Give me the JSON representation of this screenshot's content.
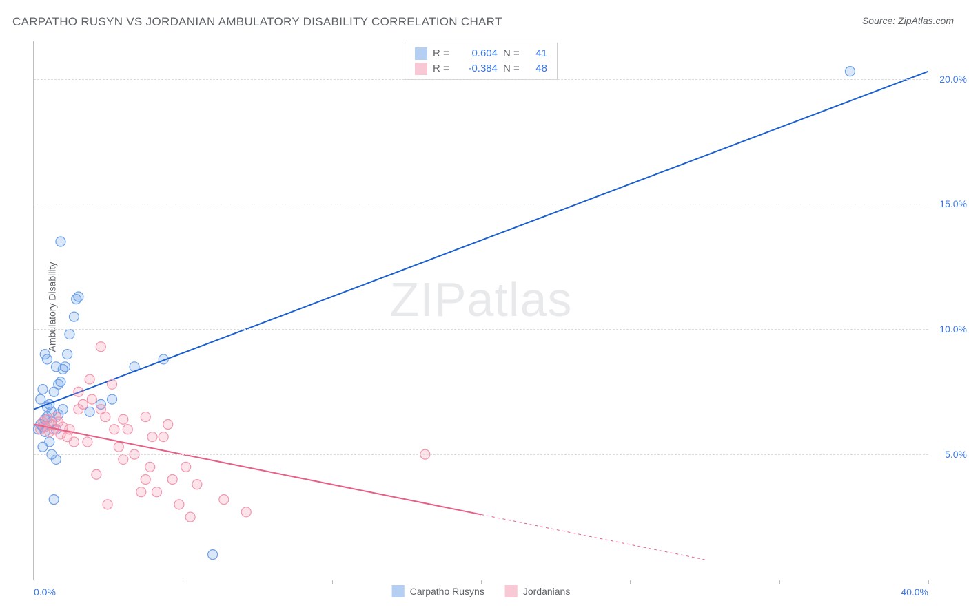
{
  "title": "CARPATHO RUSYN VS JORDANIAN AMBULATORY DISABILITY CORRELATION CHART",
  "source": "Source: ZipAtlas.com",
  "ylabel": "Ambulatory Disability",
  "watermark_zip": "ZIP",
  "watermark_atlas": "atlas",
  "chart": {
    "type": "scatter",
    "xlim": [
      0,
      40
    ],
    "ylim": [
      0,
      21.5
    ],
    "background_color": "#ffffff",
    "grid_color": "#dcdcdc",
    "axis_color": "#bdbdbd",
    "tick_label_color": "#3b78e7",
    "label_color": "#5f6368",
    "title_fontsize": 17,
    "label_fontsize": 14,
    "tick_fontsize": 14,
    "yticks": [
      5,
      10,
      15,
      20
    ],
    "ytick_labels": [
      "5.0%",
      "10.0%",
      "15.0%",
      "20.0%"
    ],
    "xticks": [
      0,
      6.67,
      13.33,
      20,
      26.67,
      33.33,
      40
    ],
    "xtick_labels_shown": {
      "0": "0.0%",
      "40": "40.0%"
    },
    "marker_radius": 7,
    "marker_fill_opacity": 0.25,
    "marker_stroke_width": 1.2,
    "line_width": 2
  },
  "series": [
    {
      "name": "Carpatho Rusyns",
      "color": "#6da0e8",
      "line_color": "#1a5fd0",
      "R": "0.604",
      "N": "41",
      "trend": {
        "x1": 0,
        "y1": 6.8,
        "x2": 40,
        "y2": 20.3
      },
      "points": [
        [
          0.2,
          6.0
        ],
        [
          0.3,
          6.2
        ],
        [
          0.4,
          6.1
        ],
        [
          0.5,
          5.9
        ],
        [
          0.5,
          6.4
        ],
        [
          0.6,
          6.5
        ],
        [
          0.7,
          7.0
        ],
        [
          0.7,
          5.5
        ],
        [
          0.8,
          6.3
        ],
        [
          0.9,
          7.5
        ],
        [
          1.0,
          6.0
        ],
        [
          1.0,
          8.5
        ],
        [
          1.1,
          7.8
        ],
        [
          1.2,
          7.9
        ],
        [
          1.3,
          8.4
        ],
        [
          1.4,
          8.5
        ],
        [
          1.5,
          9.0
        ],
        [
          1.6,
          9.8
        ],
        [
          1.8,
          10.5
        ],
        [
          1.9,
          11.2
        ],
        [
          2.0,
          11.3
        ],
        [
          1.2,
          13.5
        ],
        [
          0.5,
          9.0
        ],
        [
          0.6,
          8.8
        ],
        [
          0.8,
          5.0
        ],
        [
          1.0,
          4.8
        ],
        [
          0.4,
          5.3
        ],
        [
          2.5,
          6.7
        ],
        [
          3.0,
          7.0
        ],
        [
          3.5,
          7.2
        ],
        [
          4.5,
          8.5
        ],
        [
          5.8,
          8.8
        ],
        [
          0.9,
          3.2
        ],
        [
          8.0,
          1.0
        ],
        [
          36.5,
          20.3
        ],
        [
          0.3,
          7.2
        ],
        [
          0.4,
          7.6
        ],
        [
          0.6,
          6.9
        ],
        [
          0.8,
          6.7
        ],
        [
          1.1,
          6.6
        ],
        [
          1.3,
          6.8
        ]
      ]
    },
    {
      "name": "Jordanians",
      "color": "#f295ad",
      "line_color": "#e75f85",
      "R": "-0.384",
      "N": "48",
      "trend": {
        "x1": 0,
        "y1": 6.2,
        "x2": 20,
        "y2": 2.6
      },
      "trend_dash": {
        "x1": 20,
        "y1": 2.6,
        "x2": 30,
        "y2": 0.8
      },
      "points": [
        [
          0.3,
          6.0
        ],
        [
          0.4,
          6.3
        ],
        [
          0.5,
          6.1
        ],
        [
          0.6,
          6.4
        ],
        [
          0.7,
          5.9
        ],
        [
          0.8,
          6.2
        ],
        [
          0.9,
          6.0
        ],
        [
          1.0,
          6.5
        ],
        [
          1.1,
          6.3
        ],
        [
          1.2,
          5.8
        ],
        [
          1.3,
          6.1
        ],
        [
          1.5,
          5.7
        ],
        [
          1.6,
          6.0
        ],
        [
          1.8,
          5.5
        ],
        [
          2.0,
          6.8
        ],
        [
          2.0,
          7.5
        ],
        [
          2.2,
          7.0
        ],
        [
          2.4,
          5.5
        ],
        [
          2.5,
          8.0
        ],
        [
          2.6,
          7.2
        ],
        [
          3.0,
          6.8
        ],
        [
          3.0,
          9.3
        ],
        [
          3.2,
          6.5
        ],
        [
          3.5,
          7.8
        ],
        [
          3.6,
          6.0
        ],
        [
          3.8,
          5.3
        ],
        [
          4.0,
          6.4
        ],
        [
          4.2,
          6.0
        ],
        [
          4.5,
          5.0
        ],
        [
          5.0,
          4.0
        ],
        [
          5.0,
          6.5
        ],
        [
          5.2,
          4.5
        ],
        [
          5.5,
          3.5
        ],
        [
          5.8,
          5.7
        ],
        [
          6.0,
          6.2
        ],
        [
          6.2,
          4.0
        ],
        [
          6.5,
          3.0
        ],
        [
          6.8,
          4.5
        ],
        [
          7.0,
          2.5
        ],
        [
          7.3,
          3.8
        ],
        [
          8.5,
          3.2
        ],
        [
          9.5,
          2.7
        ],
        [
          5.3,
          5.7
        ],
        [
          4.8,
          3.5
        ],
        [
          3.3,
          3.0
        ],
        [
          4.0,
          4.8
        ],
        [
          17.5,
          5.0
        ],
        [
          2.8,
          4.2
        ]
      ]
    }
  ],
  "stats_box": {
    "row_label_R": "R =",
    "row_label_N": "N ="
  }
}
